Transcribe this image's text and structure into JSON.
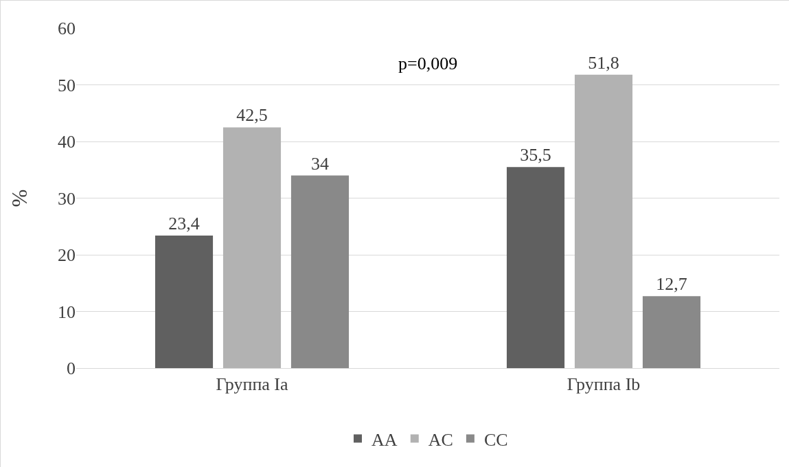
{
  "chart_data": {
    "type": "bar",
    "ylabel": "%",
    "categories": [
      "Группа Ia",
      "Группа Ib"
    ],
    "series": [
      {
        "name": "AA",
        "color": "#606060",
        "values": [
          23.4,
          35.5
        ],
        "value_labels": [
          "23,4",
          "35,5"
        ]
      },
      {
        "name": "AC",
        "color": "#b2b2b2",
        "values": [
          42.5,
          51.8
        ],
        "value_labels": [
          "42,5",
          "51,8"
        ]
      },
      {
        "name": "CC",
        "color": "#898989",
        "values": [
          34,
          12.7
        ],
        "value_labels": [
          "34",
          "12,7"
        ]
      }
    ],
    "ylim": [
      0,
      60
    ],
    "yticks": [
      0,
      10,
      20,
      30,
      40,
      50,
      60
    ],
    "grid": "y",
    "legend": "bottom",
    "annotations": [
      "p=0,009"
    ]
  }
}
